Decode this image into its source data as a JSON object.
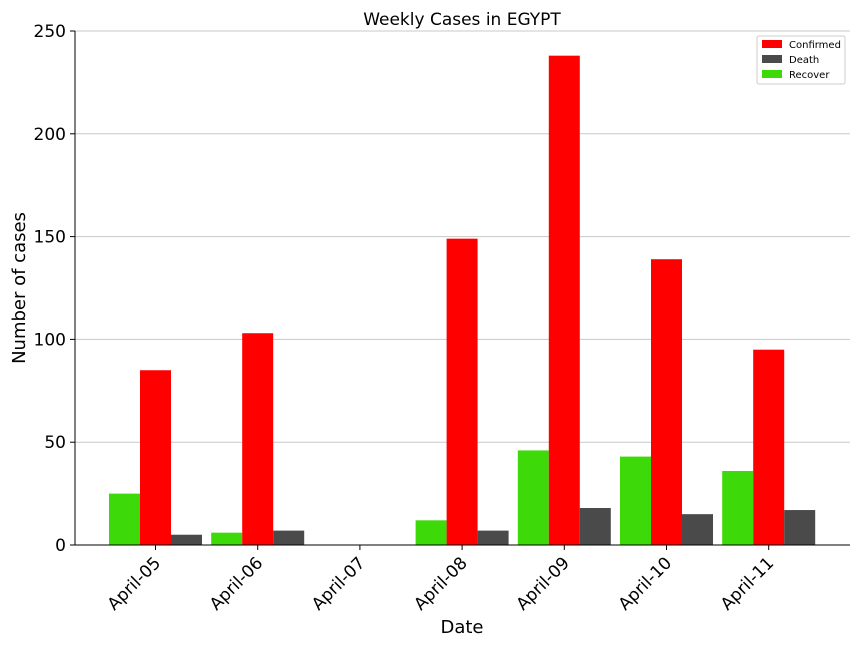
{
  "chart_data": {
    "type": "bar",
    "title": "Weekly Cases in EGYPT",
    "xlabel": "Date",
    "ylabel": "Number of cases",
    "categories": [
      "April-05",
      "April-06",
      "April-07",
      "April-08",
      "April-09",
      "April-10",
      "April-11"
    ],
    "ylim": [
      0,
      250
    ],
    "yticks": [
      0,
      50,
      100,
      150,
      200,
      250
    ],
    "grid": "horizontal",
    "legend_position": "top-right",
    "series": [
      {
        "name": "Recover",
        "color": "#3dd909",
        "values": [
          25,
          6,
          0,
          12,
          46,
          43,
          36
        ]
      },
      {
        "name": "Confirmed",
        "color": "#ff0000",
        "values": [
          85,
          103,
          0,
          149,
          238,
          139,
          95
        ]
      },
      {
        "name": "Death",
        "color": "#4a4a4a",
        "values": [
          5,
          7,
          0,
          7,
          18,
          15,
          17
        ]
      }
    ],
    "legend_order": [
      "Confirmed",
      "Death",
      "Recover"
    ]
  }
}
